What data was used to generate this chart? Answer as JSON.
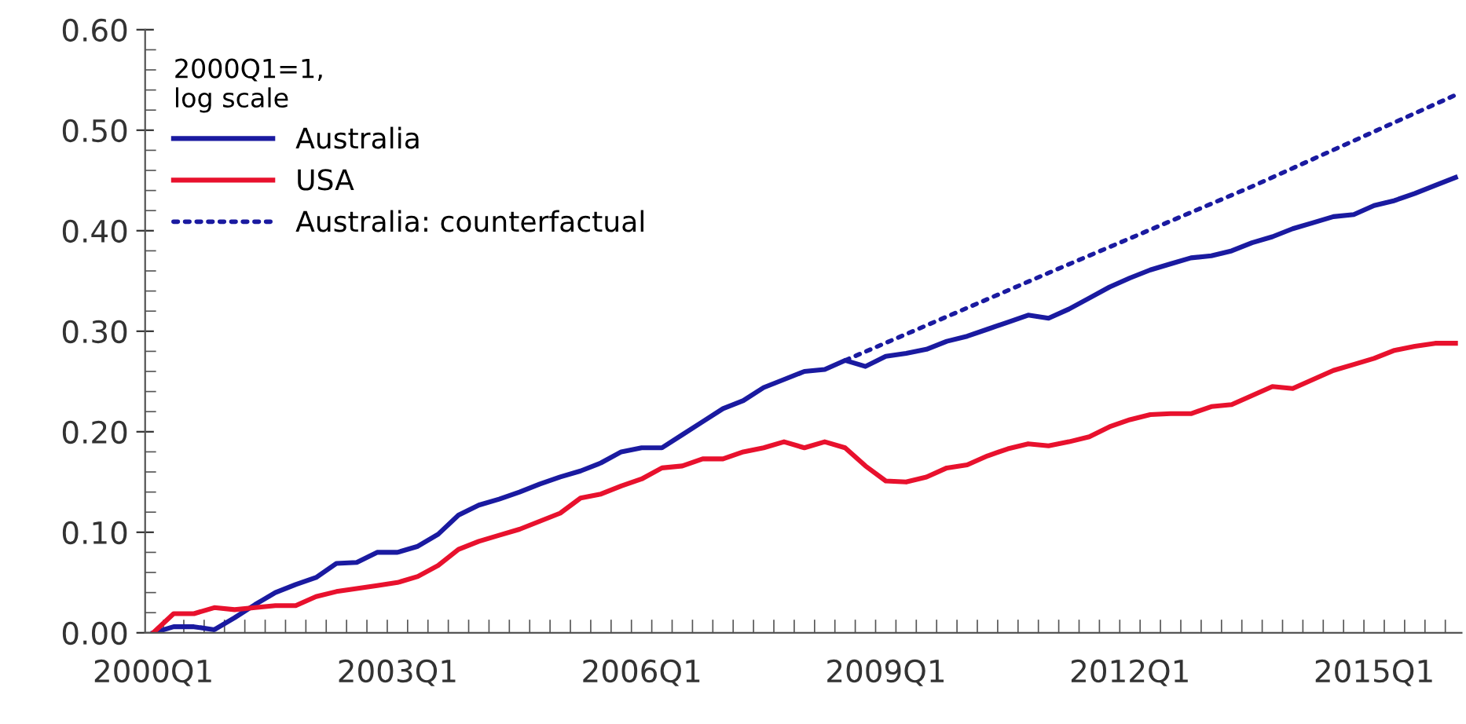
{
  "chart_data": {
    "type": "line",
    "legend_title": "2000Q1=1,\nlog scale",
    "categories": [
      "2000Q1",
      null,
      null,
      null,
      null,
      null,
      null,
      null,
      null,
      null,
      null,
      null,
      "2003Q1",
      null,
      null,
      null,
      null,
      null,
      null,
      null,
      null,
      null,
      null,
      null,
      "2006Q1",
      null,
      null,
      null,
      null,
      null,
      null,
      null,
      null,
      null,
      null,
      null,
      "2009Q1",
      null,
      null,
      null,
      null,
      null,
      null,
      null,
      null,
      null,
      null,
      null,
      "2012Q1",
      null,
      null,
      null,
      null,
      null,
      null,
      null,
      null,
      null,
      null,
      null,
      "2015Q1",
      null,
      null,
      null,
      null
    ],
    "series": [
      {
        "name": "Australia",
        "color": "#1a1aa0",
        "line_style": "solid",
        "values": [
          0,
          0.006,
          0.006,
          0.003,
          0.015,
          0.028,
          0.04,
          0.048,
          0.055,
          0.069,
          0.07,
          0.08,
          0.08,
          0.086,
          0.098,
          0.117,
          0.127,
          0.133,
          0.14,
          0.148,
          0.155,
          0.161,
          0.169,
          0.18,
          0.184,
          0.184,
          0.197,
          0.21,
          0.223,
          0.231,
          0.244,
          0.252,
          0.26,
          0.262,
          0.271,
          0.265,
          0.275,
          0.278,
          0.282,
          0.29,
          0.295,
          0.302,
          0.309,
          0.316,
          0.313,
          0.322,
          0.333,
          0.344,
          0.353,
          0.361,
          0.367,
          0.373,
          0.375,
          0.38,
          0.388,
          0.394,
          0.402,
          0.408,
          0.414,
          0.416,
          0.425,
          0.43,
          0.437,
          0.445,
          0.453
        ]
      },
      {
        "name": "USA",
        "color": "#e8112d",
        "line_style": "solid",
        "values": [
          0,
          0.019,
          0.019,
          0.025,
          0.023,
          0.025,
          0.027,
          0.027,
          0.036,
          0.041,
          0.044,
          0.047,
          0.05,
          0.056,
          0.067,
          0.083,
          0.091,
          0.097,
          0.103,
          0.111,
          0.119,
          0.134,
          0.138,
          0.146,
          0.153,
          0.164,
          0.166,
          0.173,
          0.173,
          0.18,
          0.184,
          0.19,
          0.184,
          0.19,
          0.184,
          0.166,
          0.151,
          0.15,
          0.155,
          0.164,
          0.167,
          0.176,
          0.183,
          0.188,
          0.186,
          0.19,
          0.195,
          0.205,
          0.212,
          0.217,
          0.218,
          0.218,
          0.225,
          0.227,
          0.236,
          0.245,
          0.243,
          0.252,
          0.261,
          0.267,
          0.273,
          0.281,
          0.285,
          0.288,
          0.288
        ]
      },
      {
        "name": "Australia: counterfactual",
        "color": "#1a1aa0",
        "line_style": "dotted",
        "values": [
          null,
          null,
          null,
          null,
          null,
          null,
          null,
          null,
          null,
          null,
          null,
          null,
          null,
          null,
          null,
          null,
          null,
          null,
          null,
          null,
          null,
          null,
          null,
          null,
          null,
          null,
          null,
          null,
          null,
          null,
          null,
          null,
          null,
          null,
          0.271,
          null,
          null,
          null,
          null,
          null,
          null,
          null,
          null,
          null,
          0.358,
          null,
          null,
          null,
          null,
          null,
          null,
          null,
          null,
          null,
          0.444,
          null,
          null,
          null,
          null,
          null,
          null,
          null,
          null,
          null,
          0.535
        ]
      }
    ],
    "ylim": [
      0,
      0.6
    ],
    "yticks": [
      {
        "value": 0,
        "label": "0.00"
      },
      {
        "value": 0.1,
        "label": "0.10"
      },
      {
        "value": 0.2,
        "label": "0.20"
      },
      {
        "value": 0.3,
        "label": "0.30"
      },
      {
        "value": 0.4,
        "label": "0.40"
      },
      {
        "value": 0.5,
        "label": "0.50"
      },
      {
        "value": 0.6,
        "label": "0.60"
      }
    ],
    "grid": false,
    "legend": "top left",
    "marker": "none"
  }
}
